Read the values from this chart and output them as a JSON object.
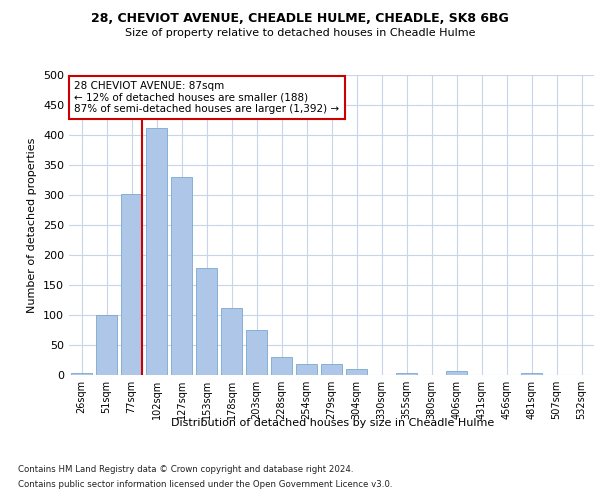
{
  "title1": "28, CHEVIOT AVENUE, CHEADLE HULME, CHEADLE, SK8 6BG",
  "title2": "Size of property relative to detached houses in Cheadle Hulme",
  "xlabel": "Distribution of detached houses by size in Cheadle Hulme",
  "ylabel": "Number of detached properties",
  "bar_labels": [
    "26sqm",
    "51sqm",
    "77sqm",
    "102sqm",
    "127sqm",
    "153sqm",
    "178sqm",
    "203sqm",
    "228sqm",
    "254sqm",
    "279sqm",
    "304sqm",
    "330sqm",
    "355sqm",
    "380sqm",
    "406sqm",
    "431sqm",
    "456sqm",
    "481sqm",
    "507sqm",
    "532sqm"
  ],
  "bar_values": [
    4,
    100,
    302,
    412,
    330,
    178,
    112,
    75,
    30,
    18,
    18,
    10,
    0,
    4,
    0,
    6,
    0,
    0,
    3,
    0,
    0
  ],
  "bar_color": "#aec6e8",
  "bar_edge_color": "#7aa8d0",
  "vline_color": "#cc0000",
  "annotation_text": "28 CHEVIOT AVENUE: 87sqm\n← 12% of detached houses are smaller (188)\n87% of semi-detached houses are larger (1,392) →",
  "annotation_box_color": "white",
  "annotation_box_edge_color": "#cc0000",
  "footer1": "Contains HM Land Registry data © Crown copyright and database right 2024.",
  "footer2": "Contains public sector information licensed under the Open Government Licence v3.0.",
  "bg_color": "white",
  "grid_color": "#c8d4e8",
  "ylim": [
    0,
    500
  ],
  "yticks": [
    0,
    50,
    100,
    150,
    200,
    250,
    300,
    350,
    400,
    450,
    500
  ]
}
